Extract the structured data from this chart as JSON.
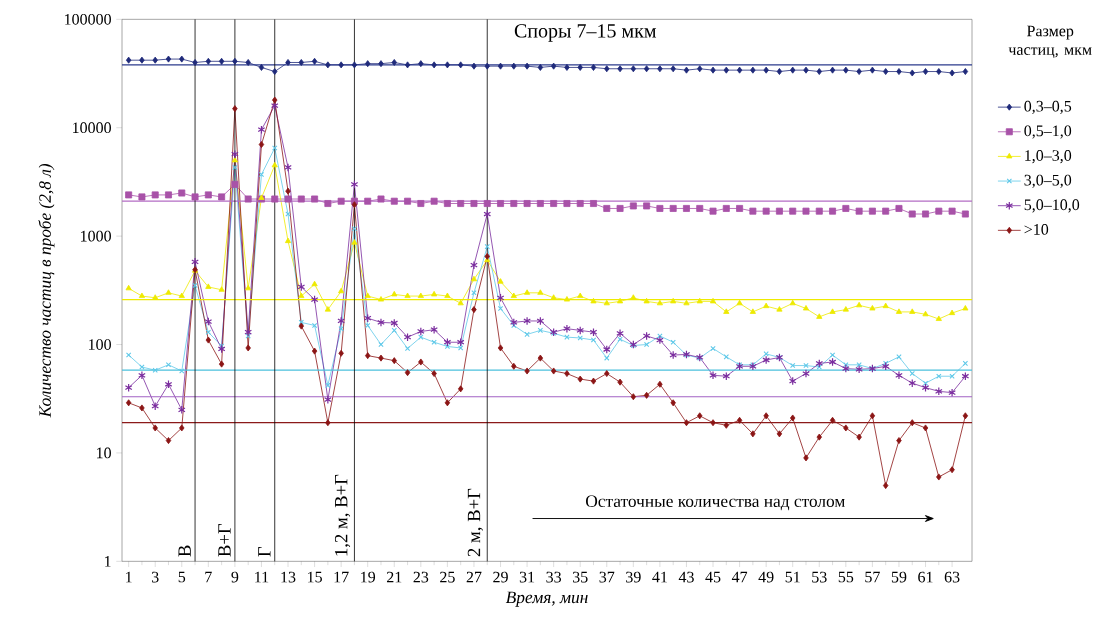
{
  "chart_data": {
    "type": "line",
    "title": "Споры 7–15 мкм",
    "xlabel": "Время, мин",
    "ylabel": "Количество частиц в пробе (2,8 л)",
    "legend_title": "Размер частиц, мкм",
    "legend": "right",
    "log": "y",
    "x": [
      1,
      2,
      3,
      4,
      5,
      6,
      7,
      8,
      9,
      10,
      11,
      12,
      13,
      14,
      15,
      16,
      17,
      18,
      19,
      20,
      21,
      22,
      23,
      24,
      25,
      26,
      27,
      28,
      29,
      30,
      31,
      32,
      33,
      34,
      35,
      36,
      37,
      38,
      39,
      40,
      41,
      42,
      43,
      44,
      45,
      46,
      47,
      48,
      49,
      50,
      51,
      52,
      53,
      54,
      55,
      56,
      57,
      58,
      59,
      60,
      61,
      62,
      63,
      64
    ],
    "xlim": [
      0.5,
      64.5
    ],
    "xticks": [
      1,
      3,
      5,
      7,
      9,
      11,
      13,
      15,
      17,
      19,
      21,
      23,
      25,
      27,
      29,
      31,
      33,
      35,
      37,
      39,
      41,
      43,
      45,
      47,
      49,
      51,
      53,
      55,
      57,
      59,
      61,
      63
    ],
    "ylim": [
      1,
      100000
    ],
    "yticks": [
      1,
      10,
      100,
      1000,
      10000,
      100000
    ],
    "series": [
      {
        "name": "0,3–0,5",
        "color": "#1f2a7a",
        "marker": "diamond",
        "values": [
          42000,
          42000,
          42000,
          43000,
          43000,
          40000,
          41000,
          41000,
          41000,
          40000,
          36000,
          33000,
          40000,
          40000,
          41000,
          38000,
          38000,
          38000,
          39000,
          39000,
          40000,
          38000,
          39000,
          38000,
          38000,
          38000,
          37000,
          37000,
          37000,
          37000,
          37000,
          36000,
          37000,
          36000,
          36000,
          36000,
          35000,
          35000,
          35000,
          35000,
          35000,
          35000,
          34000,
          35000,
          34000,
          34000,
          34000,
          34000,
          34000,
          33000,
          34000,
          34000,
          33000,
          34000,
          34000,
          33000,
          34000,
          33000,
          33000,
          32000,
          33000,
          33000,
          32000,
          33000
        ]
      },
      {
        "name": "0,5–1,0",
        "color": "#a852a8",
        "marker": "square",
        "values": [
          2400,
          2300,
          2400,
          2400,
          2500,
          2300,
          2400,
          2300,
          3000,
          2200,
          2200,
          2200,
          2200,
          2200,
          2200,
          2000,
          2100,
          2100,
          2100,
          2200,
          2100,
          2100,
          2000,
          2100,
          2000,
          2000,
          2000,
          2000,
          2000,
          2000,
          2000,
          2000,
          2000,
          2000,
          2000,
          2000,
          1800,
          1800,
          1900,
          1900,
          1800,
          1800,
          1800,
          1800,
          1700,
          1800,
          1800,
          1700,
          1700,
          1700,
          1700,
          1700,
          1700,
          1700,
          1800,
          1700,
          1700,
          1700,
          1800,
          1600,
          1600,
          1700,
          1700,
          1600
        ]
      },
      {
        "name": "1,0–3,0",
        "color": "#eeea00",
        "marker": "triangle",
        "values": [
          330,
          280,
          270,
          300,
          280,
          480,
          340,
          320,
          5000,
          330,
          2250,
          4500,
          900,
          280,
          360,
          210,
          310,
          870,
          280,
          260,
          290,
          280,
          280,
          290,
          280,
          240,
          400,
          600,
          380,
          280,
          300,
          300,
          270,
          260,
          280,
          250,
          240,
          250,
          270,
          250,
          240,
          250,
          240,
          250,
          250,
          200,
          240,
          200,
          226,
          210,
          240,
          215,
          180,
          200,
          210,
          230,
          215,
          226,
          200,
          200,
          190,
          172,
          195,
          215
        ]
      },
      {
        "name": "3,0–5,0",
        "color": "#5ec8e8",
        "marker": "cross",
        "values": [
          80,
          62,
          58,
          65,
          57,
          350,
          130,
          97,
          4300,
          120,
          3700,
          6500,
          1600,
          160,
          150,
          42,
          140,
          1170,
          150,
          100,
          135,
          92,
          117,
          105,
          96,
          93,
          300,
          800,
          215,
          150,
          124,
          135,
          127,
          117,
          115,
          110,
          75,
          112,
          98,
          100,
          120,
          105,
          80,
          75,
          92,
          77,
          65,
          65,
          82,
          76,
          64,
          64,
          62,
          80,
          65,
          65,
          60,
          67,
          77,
          54,
          44,
          51,
          51,
          67
        ]
      },
      {
        "name": "5,0–10,0",
        "color": "#7a2c9e",
        "marker": "cross",
        "values": [
          40,
          52,
          27,
          43,
          25,
          580,
          163,
          91,
          5700,
          130,
          9600,
          16000,
          4300,
          340,
          260,
          31,
          165,
          3000,
          175,
          160,
          158,
          117,
          132,
          137,
          105,
          105,
          540,
          1600,
          270,
          160,
          165,
          165,
          130,
          140,
          135,
          130,
          90,
          127,
          100,
          120,
          110,
          80,
          81,
          76,
          52,
          51,
          63,
          63,
          72,
          76,
          46,
          54,
          67,
          69,
          60,
          59,
          60,
          63,
          52,
          44,
          40,
          37,
          36,
          51
        ]
      },
      {
        "name": ">10",
        "color": "#8b1515",
        "marker": "diamond",
        "values": [
          29,
          26,
          17,
          13,
          17,
          490,
          110,
          66,
          15000,
          93,
          7000,
          18000,
          2600,
          148,
          87,
          19,
          83,
          1950,
          79,
          75,
          71,
          55,
          69,
          54,
          29,
          39,
          210,
          650,
          93,
          63,
          57,
          75,
          57,
          54,
          48,
          46,
          54,
          45,
          33,
          34,
          43,
          29,
          19,
          22,
          19,
          18,
          20,
          15,
          22,
          15,
          21,
          9,
          14,
          20,
          17,
          14,
          22,
          5,
          13,
          19,
          17,
          6,
          7,
          22
        ]
      }
    ],
    "ref_lines": [
      {
        "axis": "y",
        "value": 38000,
        "color": "#2b3a8c"
      },
      {
        "axis": "y",
        "value": 2100,
        "color": "#b36cc4"
      },
      {
        "axis": "y",
        "value": 260,
        "color": "#eeea00"
      },
      {
        "axis": "y",
        "value": 58,
        "color": "#4bc0dc"
      },
      {
        "axis": "y",
        "value": 33,
        "color": "#a262c4"
      },
      {
        "axis": "y",
        "value": 19,
        "color": "#8b1a1a"
      },
      {
        "axis": "x",
        "value": 6,
        "label": "В",
        "color": "#000000"
      },
      {
        "axis": "x",
        "value": 9,
        "label": "В+Г",
        "color": "#000000"
      },
      {
        "axis": "x",
        "value": 12,
        "label": "Г",
        "color": "#000000"
      },
      {
        "axis": "x",
        "value": 18,
        "label": "1,2 м, В+Г",
        "color": "#000000"
      },
      {
        "axis": "x",
        "value": 28,
        "label": "2 м, В+Г",
        "color": "#000000"
      }
    ],
    "annotations": [
      "Остаточные количества над столом"
    ]
  }
}
